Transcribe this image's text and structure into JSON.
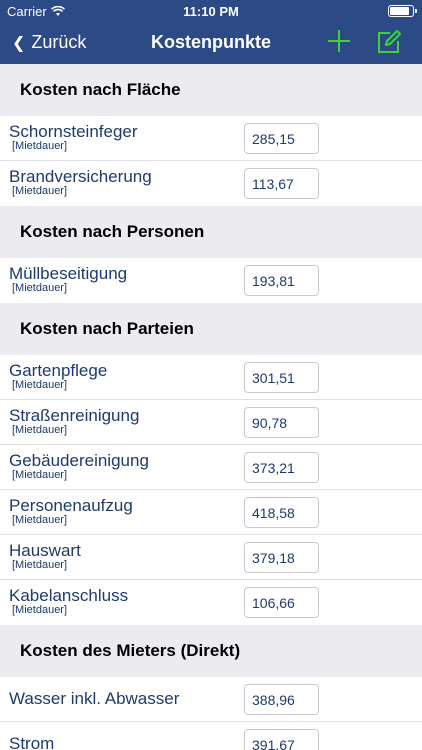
{
  "status_bar": {
    "carrier": "Carrier",
    "time": "11:10 PM",
    "battery_level": 0.9
  },
  "nav": {
    "back_label": "Zurück",
    "title": "Kostenpunkte",
    "add_icon": "plus-icon",
    "edit_icon": "compose-icon",
    "accent_color": "#3bd23b",
    "bar_color": "#2b4a86"
  },
  "sections": [
    {
      "title": "Kosten nach Fläche",
      "rows": [
        {
          "label": "Schornsteinfeger",
          "sub": "[Mietdauer]",
          "value": "285,15"
        },
        {
          "label": "Brandversicherung",
          "sub": "[Mietdauer]",
          "value": "113,67"
        }
      ]
    },
    {
      "title": "Kosten nach Personen",
      "rows": [
        {
          "label": "Müllbeseitigung",
          "sub": "[Mietdauer]",
          "value": "193,81"
        }
      ]
    },
    {
      "title": "Kosten nach Parteien",
      "rows": [
        {
          "label": "Gartenpflege",
          "sub": "[Mietdauer]",
          "value": "301,51"
        },
        {
          "label": "Straßenreinigung",
          "sub": "[Mietdauer]",
          "value": "90,78"
        },
        {
          "label": "Gebäudereinigung",
          "sub": "[Mietdauer]",
          "value": "373,21"
        },
        {
          "label": "Personenaufzug",
          "sub": "[Mietdauer]",
          "value": "418,58"
        },
        {
          "label": "Hauswart",
          "sub": "[Mietdauer]",
          "value": "379,18"
        },
        {
          "label": "Kabelanschluss",
          "sub": "[Mietdauer]",
          "value": "106,66"
        }
      ]
    },
    {
      "title": "Kosten des Mieters (Direkt)",
      "rows": [
        {
          "label": "Wasser inkl. Abwasser",
          "value": "388,96"
        },
        {
          "label": "Strom",
          "value": "391,67"
        }
      ]
    }
  ]
}
